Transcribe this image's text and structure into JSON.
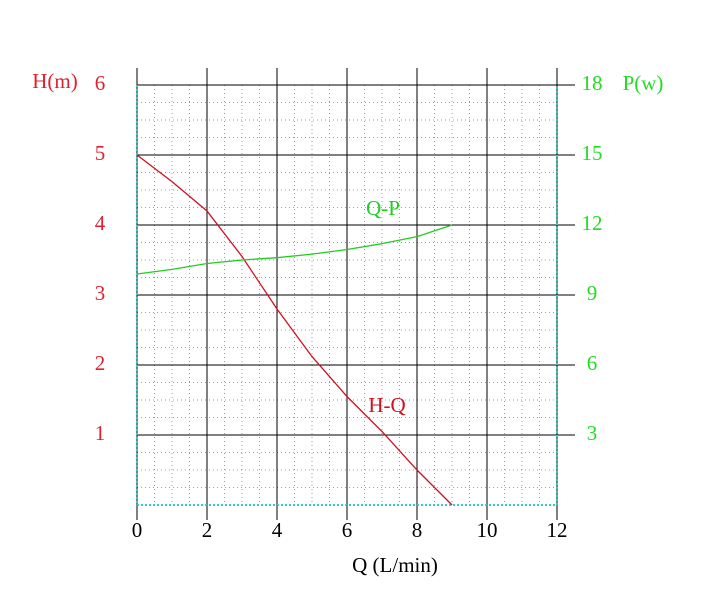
{
  "chart_data": {
    "type": "line",
    "x_label": "Q (L/min)",
    "y_label": "H(m)",
    "y2_label": "P(w)",
    "x": [
      0,
      1,
      2,
      3,
      4,
      5,
      6,
      7,
      8,
      9
    ],
    "series": [
      {
        "name": "H-Q",
        "color": "#d01020",
        "values": [
          5.0,
          4.62,
          4.2,
          3.55,
          2.8,
          2.12,
          1.55,
          1.05,
          0.5,
          0
        ]
      },
      {
        "name": "Q-P",
        "color": "#22cc22",
        "axis": "y2",
        "values": [
          9.9,
          10.1,
          10.35,
          10.5,
          10.6,
          10.75,
          10.95,
          11.2,
          11.5,
          12.0
        ]
      }
    ],
    "xlim": [
      0,
      12
    ],
    "xticks": [
      0,
      2,
      4,
      6,
      8,
      10,
      12
    ],
    "ylim": [
      0,
      6
    ],
    "yticks": [
      1,
      2,
      3,
      4,
      5,
      6
    ],
    "y2lim": [
      0,
      18
    ],
    "y2ticks": [
      3,
      6,
      9,
      12,
      15,
      18
    ],
    "y_color": "#e02030",
    "y2_color": "#22dd22",
    "grid": true,
    "minor_grid": true
  }
}
